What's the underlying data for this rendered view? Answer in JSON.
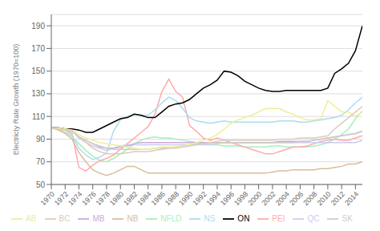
{
  "chart_data": {
    "type": "line",
    "y_label": "Electricty Rate Growth (1970=100)",
    "x": [
      1970,
      1971,
      1972,
      1973,
      1974,
      1975,
      1976,
      1977,
      1978,
      1979,
      1980,
      1981,
      1982,
      1983,
      1984,
      1985,
      1986,
      1987,
      1988,
      1989,
      1990,
      1991,
      1992,
      1993,
      1994,
      1995,
      1996,
      1997,
      1998,
      1999,
      2000,
      2001,
      2002,
      2003,
      2004,
      2005,
      2006,
      2007,
      2008,
      2009,
      2010,
      2011,
      2012,
      2013,
      2014,
      2015
    ],
    "series": [
      {
        "name": "NFLD",
        "color": "#aaeebb",
        "values": [
          100,
          98,
          96,
          92,
          86,
          80,
          75,
          71,
          70,
          73,
          77,
          81,
          86,
          89,
          91,
          92,
          91,
          91,
          90,
          89,
          88,
          87,
          86,
          85,
          85,
          84,
          84,
          84,
          83,
          83,
          83,
          83,
          84,
          84,
          83,
          83,
          83,
          83,
          84,
          85,
          87,
          90,
          94,
          99,
          108,
          115
        ]
      },
      {
        "name": "PEI",
        "color": "#ffaaaa",
        "values": [
          100,
          100,
          99,
          95,
          65,
          62,
          67,
          71,
          73,
          76,
          81,
          86,
          91,
          96,
          101,
          112,
          132,
          143,
          132,
          127,
          102,
          97,
          91,
          89,
          91,
          89,
          87,
          85,
          83,
          81,
          79,
          77,
          77,
          79,
          81,
          83,
          83,
          84,
          86,
          88,
          89,
          90,
          89,
          89,
          91,
          93
        ]
      },
      {
        "name": "NS",
        "color": "#aaddee",
        "values": [
          100,
          100,
          98,
          93,
          82,
          76,
          72,
          74,
          78,
          97,
          107,
          110,
          112,
          111,
          111,
          116,
          122,
          127,
          124,
          117,
          109,
          106,
          105,
          104,
          105,
          106,
          105,
          105,
          105,
          105,
          105,
          105,
          105,
          106,
          106,
          106,
          105,
          105,
          106,
          107,
          108,
          109,
          111,
          116,
          122,
          127
        ]
      },
      {
        "name": "NB",
        "color": "#ddbb99",
        "values": [
          100,
          98,
          95,
          90,
          78,
          70,
          63,
          60,
          58,
          60,
          63,
          66,
          66,
          63,
          60,
          60,
          60,
          60,
          60,
          60,
          60,
          60,
          60,
          60,
          60,
          60,
          60,
          60,
          60,
          60,
          60,
          60,
          61,
          62,
          62,
          63,
          63,
          63,
          63,
          64,
          64,
          65,
          66,
          68,
          68,
          70
        ]
      },
      {
        "name": "QC",
        "color": "#ccccee",
        "values": [
          100,
          99,
          98,
          97,
          91,
          87,
          84,
          82,
          80,
          82,
          84,
          85,
          85,
          85,
          85,
          85,
          85,
          85,
          85,
          85,
          85,
          85,
          85,
          85,
          86,
          87,
          87,
          87,
          87,
          87,
          87,
          87,
          87,
          87,
          87,
          87,
          87,
          87,
          87,
          87,
          87,
          87,
          87,
          87,
          87,
          89
        ]
      },
      {
        "name": "ON",
        "color": "#000000",
        "values": [
          100,
          100,
          99,
          99,
          98,
          96,
          96,
          99,
          102,
          105,
          108,
          109,
          112,
          111,
          109,
          109,
          114,
          119,
          121,
          122,
          125,
          130,
          135,
          138,
          142,
          150,
          149,
          146,
          141,
          138,
          135,
          133,
          132,
          132,
          133,
          133,
          133,
          133,
          133,
          133,
          135,
          148,
          152,
          157,
          168,
          190
        ]
      },
      {
        "name": "MB",
        "color": "#ccaadd",
        "values": [
          100,
          99,
          98,
          97,
          92,
          89,
          86,
          83,
          82,
          82,
          83,
          84,
          86,
          87,
          87,
          87,
          87,
          87,
          87,
          87,
          87,
          87,
          87,
          87,
          87,
          87,
          87,
          87,
          87,
          87,
          87,
          87,
          87,
          88,
          88,
          88,
          88,
          88,
          89,
          90,
          91,
          92,
          93,
          94,
          95,
          97
        ]
      },
      {
        "name": "SK",
        "color": "#cccccc",
        "values": [
          100,
          99,
          98,
          97,
          92,
          89,
          86,
          84,
          82,
          81,
          81,
          81,
          81,
          81,
          81,
          82,
          82,
          82,
          83,
          84,
          85,
          86,
          86,
          87,
          87,
          87,
          87,
          87,
          87,
          87,
          87,
          87,
          87,
          87,
          87,
          87,
          88,
          88,
          89,
          90,
          91,
          92,
          93,
          94,
          95,
          97
        ]
      },
      {
        "name": "AB",
        "color": "#eeee99",
        "values": [
          100,
          100,
          99,
          98,
          94,
          91,
          89,
          87,
          86,
          85,
          84,
          83,
          82,
          81,
          81,
          82,
          83,
          83,
          83,
          84,
          85,
          87,
          89,
          91,
          94,
          99,
          104,
          107,
          109,
          111,
          114,
          117,
          117,
          117,
          114,
          112,
          109,
          107,
          107,
          108,
          124,
          119,
          114,
          114,
          110,
          114
        ]
      },
      {
        "name": "BC",
        "color": "#ddccbb",
        "values": [
          100,
          99,
          98,
          97,
          92,
          87,
          82,
          79,
          77,
          77,
          77,
          78,
          79,
          79,
          79,
          80,
          81,
          82,
          82,
          83,
          84,
          85,
          86,
          87,
          88,
          89,
          89,
          89,
          89,
          89,
          89,
          89,
          89,
          90,
          90,
          90,
          91,
          91,
          91,
          92,
          93,
          99,
          104,
          109,
          114,
          119
        ]
      }
    ],
    "xlim": [
      1970,
      2015
    ],
    "xticks": [
      1970,
      1972,
      1974,
      1976,
      1978,
      1980,
      1982,
      1984,
      1986,
      1988,
      1990,
      1992,
      1994,
      1996,
      1998,
      2000,
      2002,
      2004,
      2006,
      2008,
      2010,
      2012,
      2014
    ],
    "ylim": [
      50,
      200
    ],
    "yticks": [
      50,
      70,
      90,
      110,
      130,
      150,
      170,
      190
    ],
    "grid": true,
    "legend": "bottom"
  }
}
